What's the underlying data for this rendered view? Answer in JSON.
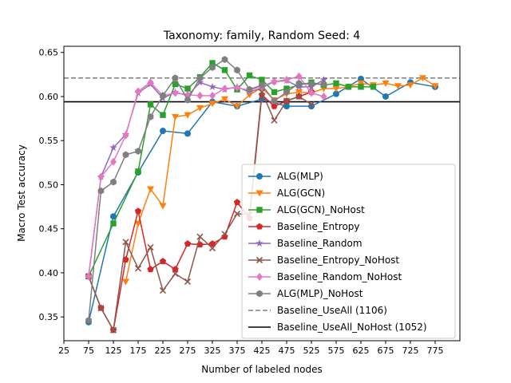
{
  "chart_data": {
    "type": "line",
    "title": "Taxonomy: family, Random Seed: 4",
    "xlabel": "Number of labeled nodes",
    "ylabel": "Macro Test accuracy",
    "xlim": [
      25,
      825
    ],
    "ylim": [
      0.323,
      0.657
    ],
    "xticks": [
      25,
      75,
      125,
      175,
      225,
      275,
      325,
      375,
      425,
      475,
      525,
      575,
      625,
      675,
      725,
      775
    ],
    "yticks": [
      0.35,
      0.4,
      0.45,
      0.5,
      0.55,
      0.6,
      0.65
    ],
    "ytick_labels": [
      "0.35",
      "0.40",
      "0.45",
      "0.50",
      "0.55",
      "0.60",
      "0.65"
    ],
    "grid": false,
    "legend_position": "lower-right",
    "x": [
      75,
      100,
      125,
      150,
      175,
      200,
      225,
      250,
      275,
      300,
      325,
      350,
      375,
      400,
      425,
      450,
      475,
      500,
      525,
      550,
      575,
      600,
      625,
      650,
      675,
      700,
      725,
      750,
      775,
      800
    ],
    "series": [
      {
        "name": "ALG(MLP)",
        "color": "#1f77b4",
        "marker": "circle",
        "values": [
          0.344,
          null,
          0.464,
          null,
          0.514,
          null,
          0.561,
          null,
          0.558,
          null,
          0.594,
          null,
          0.589,
          null,
          0.597,
          null,
          0.589,
          null,
          0.589,
          null,
          0.603,
          null,
          0.62,
          null,
          0.6,
          null,
          0.616,
          null,
          0.611,
          null
        ]
      },
      {
        "name": "ALG(GCN)",
        "color": "#ff7f0e",
        "marker": "triangle-down",
        "values": [
          null,
          null,
          null,
          0.39,
          0.456,
          0.495,
          0.476,
          0.577,
          0.579,
          0.587,
          0.592,
          0.597,
          0.589,
          0.602,
          0.61,
          0.596,
          0.603,
          0.605,
          0.604,
          0.609,
          0.609,
          0.611,
          0.615,
          0.613,
          0.615,
          0.612,
          0.613,
          0.621,
          0.612,
          null
        ]
      },
      {
        "name": "ALG(GCN)_NoHost",
        "color": "#2ca02c",
        "marker": "square",
        "values": [
          0.396,
          null,
          0.456,
          null,
          0.515,
          0.591,
          0.579,
          0.614,
          0.609,
          0.622,
          0.638,
          0.63,
          0.608,
          0.624,
          0.619,
          0.605,
          0.609,
          0.613,
          0.616,
          0.613,
          0.615,
          0.611,
          0.611,
          0.611,
          null,
          null,
          null,
          null,
          null,
          null
        ]
      },
      {
        "name": "Baseline_Entropy",
        "color": "#d62728",
        "marker": "pentagon",
        "values": [
          0.396,
          0.36,
          0.335,
          0.415,
          0.47,
          0.404,
          0.413,
          0.404,
          0.433,
          0.432,
          0.433,
          0.441,
          0.48,
          0.462,
          0.602,
          0.589,
          0.595,
          0.6,
          0.605,
          null,
          null,
          null,
          null,
          null,
          null,
          null,
          null,
          null,
          null,
          null
        ]
      },
      {
        "name": "Baseline_Random",
        "color": "#9467bd",
        "marker": "star",
        "values": [
          0.396,
          0.509,
          0.542,
          0.557,
          0.604,
          0.614,
          0.598,
          0.605,
          0.601,
          0.616,
          0.611,
          0.608,
          0.611,
          0.605,
          0.61,
          0.617,
          0.618,
          0.611,
          0.611,
          0.619,
          null,
          null,
          null,
          null,
          null,
          null,
          null,
          null,
          null,
          null
        ]
      },
      {
        "name": "Baseline_Entropy_NoHost",
        "color": "#8c564b",
        "marker": "x",
        "values": [
          0.396,
          0.36,
          0.335,
          0.435,
          0.405,
          0.429,
          0.38,
          0.399,
          0.39,
          0.441,
          0.428,
          0.444,
          0.467,
          0.466,
          0.605,
          0.573,
          0.595,
          0.6,
          0.591,
          null,
          null,
          null,
          null,
          null,
          null,
          null,
          null,
          null,
          null,
          null
        ]
      },
      {
        "name": "Baseline_Random_NoHost",
        "color": "#e377c2",
        "marker": "diamond",
        "values": [
          0.396,
          0.509,
          0.526,
          0.556,
          0.606,
          0.616,
          0.601,
          0.604,
          0.602,
          0.601,
          0.601,
          0.609,
          0.61,
          0.607,
          0.612,
          0.617,
          0.619,
          0.623,
          0.604,
          0.6,
          null,
          null,
          null,
          null,
          null,
          null,
          null,
          null,
          null,
          null
        ]
      },
      {
        "name": "ALG(MLP)_NoHost",
        "color": "#7f7f7f",
        "marker": "hexagon",
        "values": [
          0.346,
          0.493,
          0.503,
          0.534,
          0.538,
          0.577,
          0.601,
          0.621,
          0.596,
          0.621,
          0.633,
          0.642,
          0.63,
          0.608,
          0.613,
          0.595,
          0.605,
          0.615,
          0.614,
          0.614,
          null,
          null,
          null,
          null,
          null,
          null,
          null,
          null,
          null,
          null
        ]
      }
    ],
    "reference_lines": [
      {
        "name": "Baseline_UseAll (1106)",
        "value": 0.621,
        "color": "#7f7f7f",
        "style": "dashed"
      },
      {
        "name": "Baseline_UseAll_NoHost (1052)",
        "value": 0.594,
        "color": "#000000",
        "style": "solid"
      }
    ]
  }
}
